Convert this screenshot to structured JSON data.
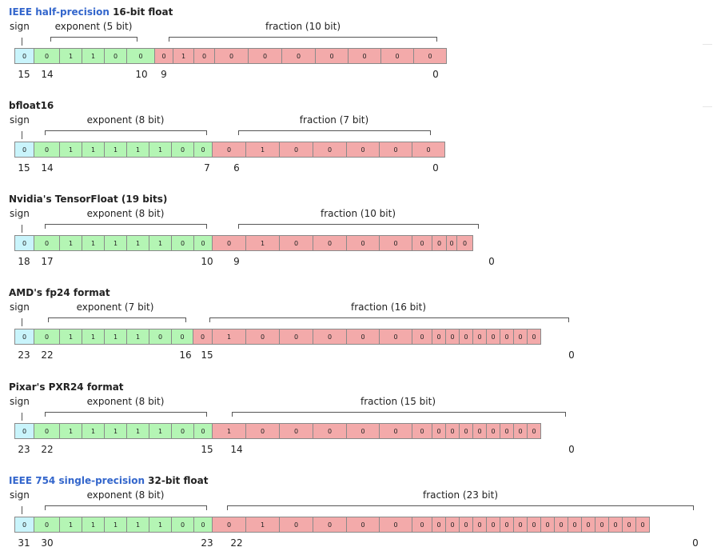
{
  "diagrams": [
    {
      "title_link": "IEEE half-precision",
      "title_rest": " 16-bit float",
      "sign_label": "sign",
      "exponent_label": "exponent (5 bit)",
      "fraction_label": "fraction (10 bit)",
      "bits": {
        "sign": [
          "0"
        ],
        "exponent": [
          "0",
          "1",
          "1",
          "0",
          "0"
        ],
        "fraction": [
          "0",
          "1",
          "0",
          "0",
          "0",
          "0",
          "0",
          "0",
          "0",
          "0"
        ]
      },
      "indices": [
        "15",
        "14",
        "10",
        "9",
        "0"
      ]
    },
    {
      "title_link": "",
      "title_rest": "bfloat16",
      "sign_label": "sign",
      "exponent_label": "exponent (8 bit)",
      "fraction_label": "fraction (7 bit)",
      "bits": {
        "sign": [
          "0"
        ],
        "exponent": [
          "0",
          "1",
          "1",
          "1",
          "1",
          "1",
          "0",
          "0"
        ],
        "fraction": [
          "0",
          "1",
          "0",
          "0",
          "0",
          "0",
          "0"
        ]
      },
      "indices": [
        "15",
        "14",
        "7",
        "6",
        "0"
      ]
    },
    {
      "title_link": "",
      "title_rest": "Nvidia's TensorFloat (19 bits)",
      "sign_label": "sign",
      "exponent_label": "exponent (8 bit)",
      "fraction_label": "fraction (10 bit)",
      "bits": {
        "sign": [
          "0"
        ],
        "exponent": [
          "0",
          "1",
          "1",
          "1",
          "1",
          "1",
          "0",
          "0"
        ],
        "fraction": [
          "0",
          "1",
          "0",
          "0",
          "0",
          "0",
          "0",
          "0",
          "0",
          "0"
        ]
      },
      "indices": [
        "18",
        "17",
        "10",
        "9",
        "0"
      ]
    },
    {
      "title_link": "",
      "title_rest": "AMD's fp24 format",
      "sign_label": "sign",
      "exponent_label": "exponent (7 bit)",
      "fraction_label": "fraction (16 bit)",
      "bits": {
        "sign": [
          "0"
        ],
        "exponent": [
          "0",
          "1",
          "1",
          "1",
          "1",
          "0",
          "0"
        ],
        "fraction": [
          "0",
          "1",
          "0",
          "0",
          "0",
          "0",
          "0",
          "0",
          "0",
          "0",
          "0",
          "0",
          "0",
          "0",
          "0",
          "0"
        ]
      },
      "indices": [
        "23",
        "22",
        "16",
        "15",
        "0"
      ]
    },
    {
      "title_link": "",
      "title_rest": "Pixar's PXR24 format",
      "sign_label": "sign",
      "exponent_label": "exponent (8 bit)",
      "fraction_label": "fraction (15 bit)",
      "bits": {
        "sign": [
          "0"
        ],
        "exponent": [
          "0",
          "1",
          "1",
          "1",
          "1",
          "1",
          "0",
          "0"
        ],
        "fraction": [
          "1",
          "0",
          "0",
          "0",
          "0",
          "0",
          "0",
          "0",
          "0",
          "0",
          "0",
          "0",
          "0",
          "0",
          "0"
        ]
      },
      "indices": [
        "23",
        "22",
        "15",
        "14",
        "0"
      ]
    },
    {
      "title_link": "IEEE 754 single-precision",
      "title_rest": " 32-bit float",
      "sign_label": "sign",
      "exponent_label": "exponent (8 bit)",
      "fraction_label": "fraction (23 bit)",
      "bits": {
        "sign": [
          "0"
        ],
        "exponent": [
          "0",
          "1",
          "1",
          "1",
          "1",
          "1",
          "0",
          "0"
        ],
        "fraction": [
          "0",
          "1",
          "0",
          "0",
          "0",
          "0",
          "0",
          "0",
          "0",
          "0",
          "0",
          "0",
          "0",
          "0",
          "0",
          "0",
          "0",
          "0",
          "0",
          "0",
          "0",
          "0",
          "0"
        ]
      },
      "indices": [
        "31",
        "30",
        "23",
        "22",
        "0"
      ]
    }
  ]
}
